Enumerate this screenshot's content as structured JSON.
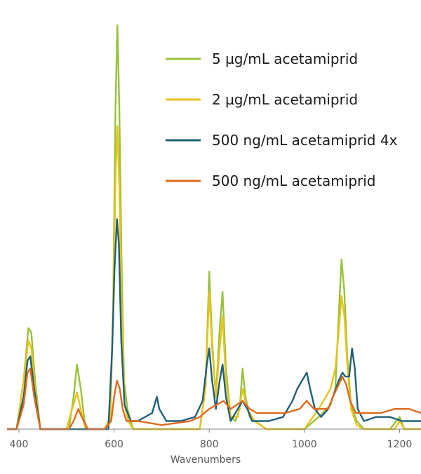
{
  "chart_data": {
    "type": "line",
    "title": "",
    "xlabel": "Wavenumbers",
    "ylabel": "",
    "xlim": [
      375,
      1245
    ],
    "ylim": [
      0,
      1.0
    ],
    "xticks": [
      400,
      600,
      800,
      1000,
      1200
    ],
    "grid": false,
    "legend_position": "top-right",
    "series": [
      {
        "name": "5 µg/mL acetamiprid",
        "color": "#99c13c",
        "points": [
          [
            375,
            0.0
          ],
          [
            395,
            0.0
          ],
          [
            410,
            0.12
          ],
          [
            420,
            0.25
          ],
          [
            426,
            0.24
          ],
          [
            434,
            0.12
          ],
          [
            445,
            0.0
          ],
          [
            490,
            0.0
          ],
          [
            505,
            0.0
          ],
          [
            515,
            0.08
          ],
          [
            522,
            0.16
          ],
          [
            530,
            0.1
          ],
          [
            540,
            0.0
          ],
          [
            580,
            0.0
          ],
          [
            592,
            0.02
          ],
          [
            598,
            0.3
          ],
          [
            603,
            0.8
          ],
          [
            607,
            1.0
          ],
          [
            611,
            0.8
          ],
          [
            616,
            0.4
          ],
          [
            621,
            0.12
          ],
          [
            628,
            0.05
          ],
          [
            640,
            0.0
          ],
          [
            780,
            0.0
          ],
          [
            792,
            0.1
          ],
          [
            800,
            0.39
          ],
          [
            806,
            0.22
          ],
          [
            814,
            0.08
          ],
          [
            822,
            0.25
          ],
          [
            828,
            0.34
          ],
          [
            835,
            0.15
          ],
          [
            845,
            0.03
          ],
          [
            855,
            0.02
          ],
          [
            864,
            0.05
          ],
          [
            870,
            0.15
          ],
          [
            876,
            0.08
          ],
          [
            885,
            0.03
          ],
          [
            920,
            0.0
          ],
          [
            1000,
            0.0
          ],
          [
            1030,
            0.03
          ],
          [
            1055,
            0.06
          ],
          [
            1065,
            0.1
          ],
          [
            1072,
            0.28
          ],
          [
            1078,
            0.42
          ],
          [
            1084,
            0.34
          ],
          [
            1090,
            0.18
          ],
          [
            1098,
            0.06
          ],
          [
            1110,
            0.02
          ],
          [
            1125,
            0.0
          ],
          [
            1180,
            0.0
          ],
          [
            1200,
            0.03
          ],
          [
            1210,
            0.0
          ],
          [
            1245,
            0.0
          ]
        ]
      },
      {
        "name": "2 µg/mL acetamiprid",
        "color": "#e8c31a",
        "points": [
          [
            375,
            0.0
          ],
          [
            395,
            0.0
          ],
          [
            410,
            0.12
          ],
          [
            420,
            0.22
          ],
          [
            426,
            0.2
          ],
          [
            434,
            0.1
          ],
          [
            445,
            0.0
          ],
          [
            500,
            0.0
          ],
          [
            512,
            0.05
          ],
          [
            522,
            0.09
          ],
          [
            530,
            0.05
          ],
          [
            540,
            0.0
          ],
          [
            580,
            0.0
          ],
          [
            592,
            0.03
          ],
          [
            598,
            0.3
          ],
          [
            603,
            0.62
          ],
          [
            607,
            0.75
          ],
          [
            611,
            0.6
          ],
          [
            616,
            0.3
          ],
          [
            622,
            0.06
          ],
          [
            630,
            0.02
          ],
          [
            640,
            0.0
          ],
          [
            780,
            0.0
          ],
          [
            792,
            0.1
          ],
          [
            800,
            0.34
          ],
          [
            806,
            0.2
          ],
          [
            814,
            0.08
          ],
          [
            822,
            0.2
          ],
          [
            828,
            0.28
          ],
          [
            835,
            0.12
          ],
          [
            845,
            0.03
          ],
          [
            860,
            0.03
          ],
          [
            870,
            0.1
          ],
          [
            880,
            0.05
          ],
          [
            895,
            0.02
          ],
          [
            920,
            0.0
          ],
          [
            1000,
            0.0
          ],
          [
            1030,
            0.05
          ],
          [
            1055,
            0.1
          ],
          [
            1065,
            0.15
          ],
          [
            1072,
            0.24
          ],
          [
            1078,
            0.33
          ],
          [
            1084,
            0.28
          ],
          [
            1090,
            0.16
          ],
          [
            1098,
            0.05
          ],
          [
            1110,
            0.01
          ],
          [
            1125,
            0.0
          ],
          [
            1190,
            0.0
          ],
          [
            1200,
            0.02
          ],
          [
            1210,
            0.0
          ],
          [
            1245,
            0.0
          ]
        ]
      },
      {
        "name": "500 ng/mL acetamiprid 4x",
        "color": "#1f5f7a",
        "points": [
          [
            375,
            0.0
          ],
          [
            395,
            0.0
          ],
          [
            410,
            0.08
          ],
          [
            418,
            0.17
          ],
          [
            424,
            0.18
          ],
          [
            432,
            0.1
          ],
          [
            445,
            0.0
          ],
          [
            575,
            0.0
          ],
          [
            588,
            0.0
          ],
          [
            596,
            0.2
          ],
          [
            601,
            0.4
          ],
          [
            606,
            0.52
          ],
          [
            610,
            0.46
          ],
          [
            615,
            0.22
          ],
          [
            622,
            0.06
          ],
          [
            635,
            0.02
          ],
          [
            650,
            0.02
          ],
          [
            680,
            0.04
          ],
          [
            690,
            0.08
          ],
          [
            695,
            0.05
          ],
          [
            710,
            0.02
          ],
          [
            740,
            0.02
          ],
          [
            770,
            0.03
          ],
          [
            786,
            0.07
          ],
          [
            795,
            0.16
          ],
          [
            800,
            0.2
          ],
          [
            806,
            0.12
          ],
          [
            814,
            0.05
          ],
          [
            822,
            0.12
          ],
          [
            828,
            0.16
          ],
          [
            835,
            0.08
          ],
          [
            845,
            0.02
          ],
          [
            860,
            0.05
          ],
          [
            870,
            0.07
          ],
          [
            880,
            0.05
          ],
          [
            890,
            0.02
          ],
          [
            925,
            0.02
          ],
          [
            955,
            0.03
          ],
          [
            975,
            0.07
          ],
          [
            985,
            0.1
          ],
          [
            995,
            0.12
          ],
          [
            1005,
            0.14
          ],
          [
            1012,
            0.1
          ],
          [
            1022,
            0.05
          ],
          [
            1035,
            0.03
          ],
          [
            1050,
            0.05
          ],
          [
            1060,
            0.08
          ],
          [
            1066,
            0.1
          ],
          [
            1072,
            0.12
          ],
          [
            1080,
            0.14
          ],
          [
            1086,
            0.13
          ],
          [
            1094,
            0.13
          ],
          [
            1100,
            0.2
          ],
          [
            1106,
            0.15
          ],
          [
            1112,
            0.05
          ],
          [
            1125,
            0.02
          ],
          [
            1150,
            0.03
          ],
          [
            1180,
            0.03
          ],
          [
            1205,
            0.02
          ],
          [
            1230,
            0.02
          ],
          [
            1245,
            0.02
          ]
        ]
      },
      {
        "name": "500 ng/mL acetamiprid",
        "color": "#e06a1f",
        "points": [
          [
            375,
            0.0
          ],
          [
            395,
            0.0
          ],
          [
            410,
            0.06
          ],
          [
            418,
            0.14
          ],
          [
            424,
            0.15
          ],
          [
            432,
            0.08
          ],
          [
            445,
            0.0
          ],
          [
            505,
            0.0
          ],
          [
            515,
            0.02
          ],
          [
            525,
            0.05
          ],
          [
            532,
            0.03
          ],
          [
            545,
            0.0
          ],
          [
            580,
            0.0
          ],
          [
            594,
            0.02
          ],
          [
            600,
            0.08
          ],
          [
            606,
            0.12
          ],
          [
            612,
            0.1
          ],
          [
            618,
            0.05
          ],
          [
            626,
            0.02
          ],
          [
            650,
            0.02
          ],
          [
            700,
            0.01
          ],
          [
            760,
            0.02
          ],
          [
            780,
            0.03
          ],
          [
            800,
            0.05
          ],
          [
            815,
            0.06
          ],
          [
            830,
            0.07
          ],
          [
            845,
            0.05
          ],
          [
            870,
            0.07
          ],
          [
            885,
            0.05
          ],
          [
            900,
            0.04
          ],
          [
            930,
            0.04
          ],
          [
            960,
            0.04
          ],
          [
            990,
            0.05
          ],
          [
            1005,
            0.07
          ],
          [
            1020,
            0.05
          ],
          [
            1050,
            0.05
          ],
          [
            1060,
            0.08
          ],
          [
            1072,
            0.11
          ],
          [
            1080,
            0.13
          ],
          [
            1088,
            0.11
          ],
          [
            1096,
            0.07
          ],
          [
            1108,
            0.04
          ],
          [
            1130,
            0.04
          ],
          [
            1160,
            0.04
          ],
          [
            1190,
            0.05
          ],
          [
            1220,
            0.05
          ],
          [
            1245,
            0.04
          ]
        ]
      }
    ]
  }
}
